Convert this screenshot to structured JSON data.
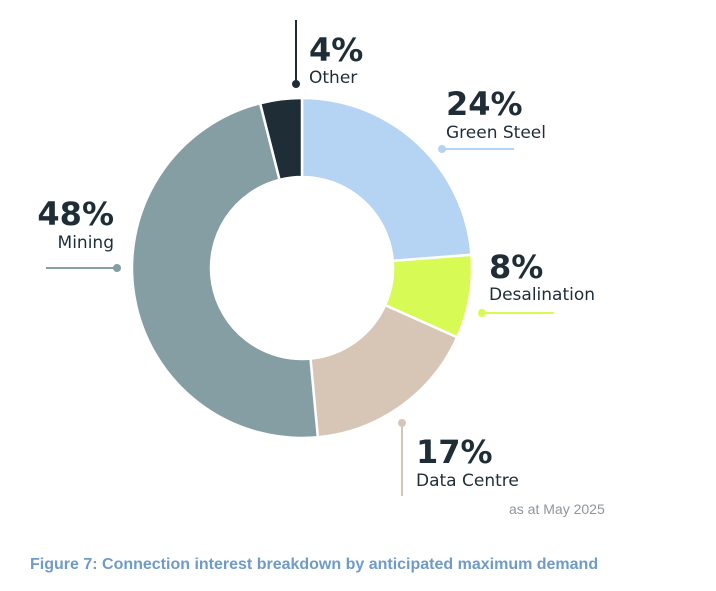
{
  "chart_data": {
    "type": "pie",
    "donut": true,
    "categories": [
      "Green Steel",
      "Desalination",
      "Data Centre",
      "Mining",
      "Other"
    ],
    "values": [
      24,
      8,
      17,
      48,
      4
    ],
    "labels": [
      "24%",
      "8%",
      "17%",
      "48%",
      "4%"
    ],
    "colors": [
      "#b5d3f2",
      "#d7fa55",
      "#d7c6b5",
      "#849ea3",
      "#1f2d36"
    ],
    "note": "as at May 2025",
    "caption": "Figure 7: Connection interest breakdown by anticipated maximum demand"
  }
}
